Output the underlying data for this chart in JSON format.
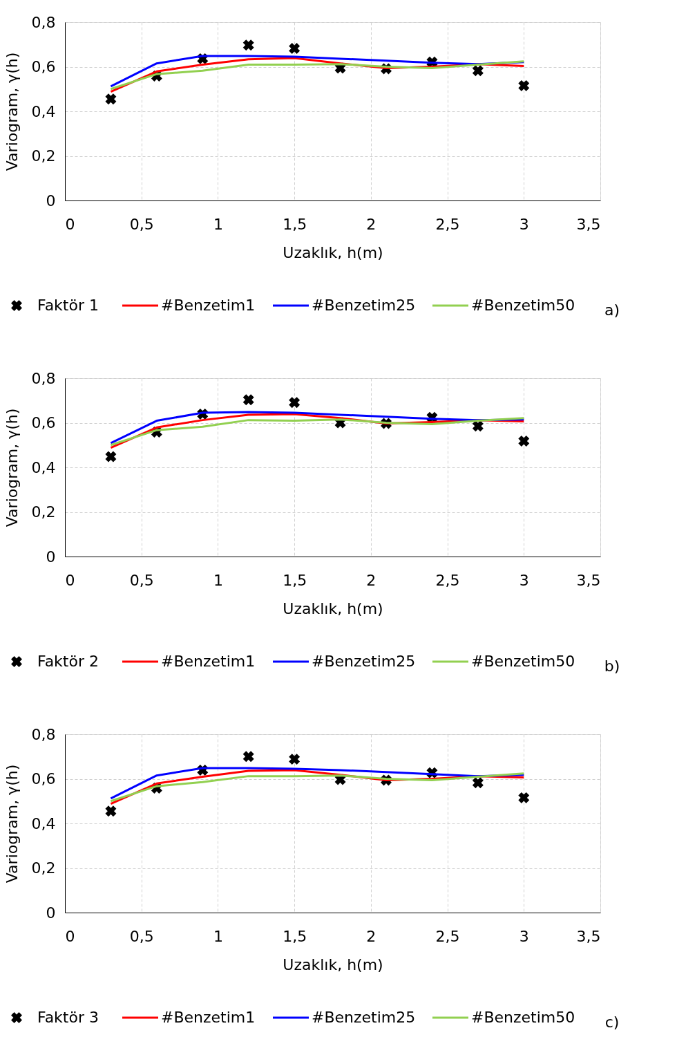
{
  "chart_data": [
    {
      "type": "line",
      "xlabel": "Uzaklık, h(m)",
      "ylabel": "Variogram, γ(h)",
      "xlim": [
        0,
        3.5
      ],
      "ylim": [
        0,
        0.8
      ],
      "xticks": [
        0,
        {
          "value": 0.5,
          "label": "0,5"
        },
        1,
        {
          "value": 1.5,
          "label": "1,5"
        },
        2,
        {
          "value": 2.5,
          "label": "2,5"
        },
        3,
        {
          "value": 3.5,
          "label": "3,5"
        }
      ],
      "yticks": [
        0,
        {
          "value": 0.2,
          "label": "0,2"
        },
        {
          "value": 0.4,
          "label": "0,4"
        },
        {
          "value": 0.6,
          "label": "0,6"
        },
        {
          "value": 0.8,
          "label": "0,8"
        }
      ],
      "grid": true,
      "legend": "bottom",
      "annotations": [
        "a)"
      ],
      "x": [
        0.3,
        0.6,
        0.9,
        1.2,
        1.5,
        1.8,
        2.1,
        2.4,
        2.7,
        3.0
      ],
      "series": [
        {
          "name": "Faktör 1",
          "type": "scatter",
          "marker": "cross",
          "color": "#000000",
          "values": [
            0.455,
            0.558,
            0.636,
            0.697,
            0.682,
            0.594,
            0.591,
            0.621,
            0.582,
            0.515
          ]
        },
        {
          "name": "#Benzetim1",
          "color": "#ff0000",
          "values": [
            0.488,
            0.579,
            0.609,
            0.633,
            0.639,
            0.615,
            0.594,
            0.6,
            0.612,
            0.603
          ]
        },
        {
          "name": "#Benzetim25",
          "color": "#0000ff",
          "values": [
            0.512,
            0.615,
            0.648,
            0.648,
            0.645,
            0.636,
            0.627,
            0.618,
            0.612,
            0.621
          ]
        },
        {
          "name": "#Benzetim50",
          "color": "#92d050",
          "values": [
            0.5,
            0.567,
            0.582,
            0.609,
            0.609,
            0.612,
            0.6,
            0.594,
            0.609,
            0.624
          ]
        }
      ]
    },
    {
      "type": "line",
      "xlabel": "Uzaklık, h(m)",
      "ylabel": "Variogram, γ(h)",
      "xlim": [
        0,
        3.5
      ],
      "ylim": [
        0,
        0.8
      ],
      "xticks": [
        0,
        {
          "value": 0.5,
          "label": "0,5"
        },
        1,
        {
          "value": 1.5,
          "label": "1,5"
        },
        2,
        {
          "value": 2.5,
          "label": "2,5"
        },
        3,
        {
          "value": 3.5,
          "label": "3,5"
        }
      ],
      "yticks": [
        0,
        {
          "value": 0.2,
          "label": "0,2"
        },
        {
          "value": 0.4,
          "label": "0,4"
        },
        {
          "value": 0.6,
          "label": "0,6"
        },
        {
          "value": 0.8,
          "label": "0,8"
        }
      ],
      "grid": true,
      "legend": "bottom",
      "annotations": [
        "b)"
      ],
      "x": [
        0.3,
        0.6,
        0.9,
        1.2,
        1.5,
        1.8,
        2.1,
        2.4,
        2.7,
        3.0
      ],
      "series": [
        {
          "name": "Faktör 2",
          "type": "scatter",
          "marker": "cross",
          "color": "#000000",
          "values": [
            0.448,
            0.558,
            0.639,
            0.703,
            0.691,
            0.6,
            0.597,
            0.624,
            0.585,
            0.518
          ]
        },
        {
          "name": "#Benzetim1",
          "color": "#ff0000",
          "values": [
            0.488,
            0.579,
            0.612,
            0.636,
            0.639,
            0.621,
            0.597,
            0.603,
            0.612,
            0.606
          ]
        },
        {
          "name": "#Benzetim25",
          "color": "#0000ff",
          "values": [
            0.509,
            0.609,
            0.645,
            0.648,
            0.645,
            0.636,
            0.627,
            0.618,
            0.612,
            0.615
          ]
        },
        {
          "name": "#Benzetim50",
          "color": "#92d050",
          "values": [
            0.5,
            0.567,
            0.582,
            0.612,
            0.609,
            0.615,
            0.6,
            0.594,
            0.609,
            0.621
          ]
        }
      ]
    },
    {
      "type": "line",
      "xlabel": "Uzaklık, h(m)",
      "ylabel": "Variogram, γ(h)",
      "xlim": [
        0,
        3.5
      ],
      "ylim": [
        0,
        0.8
      ],
      "xticks": [
        0,
        {
          "value": 0.5,
          "label": "0,5"
        },
        1,
        {
          "value": 1.5,
          "label": "1,5"
        },
        2,
        {
          "value": 2.5,
          "label": "2,5"
        },
        3,
        {
          "value": 3.5,
          "label": "3,5"
        }
      ],
      "yticks": [
        0,
        {
          "value": 0.2,
          "label": "0,2"
        },
        {
          "value": 0.4,
          "label": "0,4"
        },
        {
          "value": 0.6,
          "label": "0,6"
        },
        {
          "value": 0.8,
          "label": "0,8"
        }
      ],
      "grid": true,
      "legend": "bottom",
      "annotations": [
        "c)"
      ],
      "x": [
        0.3,
        0.6,
        0.9,
        1.2,
        1.5,
        1.8,
        2.1,
        2.4,
        2.7,
        3.0
      ],
      "series": [
        {
          "name": "Faktör 3",
          "type": "scatter",
          "marker": "cross",
          "color": "#000000",
          "values": [
            0.455,
            0.558,
            0.639,
            0.7,
            0.688,
            0.597,
            0.594,
            0.627,
            0.582,
            0.515
          ]
        },
        {
          "name": "#Benzetim1",
          "color": "#ff0000",
          "values": [
            0.488,
            0.579,
            0.609,
            0.636,
            0.639,
            0.618,
            0.594,
            0.6,
            0.612,
            0.606
          ]
        },
        {
          "name": "#Benzetim25",
          "color": "#0000ff",
          "values": [
            0.512,
            0.615,
            0.648,
            0.648,
            0.645,
            0.639,
            0.63,
            0.621,
            0.612,
            0.618
          ]
        },
        {
          "name": "#Benzetim50",
          "color": "#92d050",
          "values": [
            0.5,
            0.567,
            0.585,
            0.612,
            0.612,
            0.615,
            0.6,
            0.594,
            0.609,
            0.624
          ]
        }
      ]
    }
  ]
}
